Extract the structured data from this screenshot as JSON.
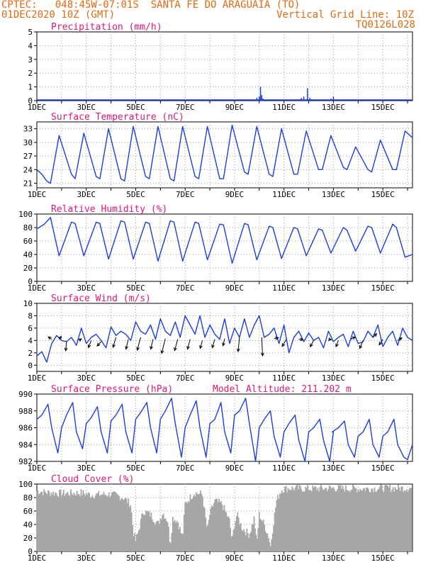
{
  "header": {
    "line1": "CPTEC:   048:45W-07:01S  SANTA FE DO ARAGUAIA (TO)",
    "line2": "01DEC2020 10Z (GMT)",
    "grid_note": "Vertical Grid Line: 10Z",
    "code": "TQ0126L028"
  },
  "colors": {
    "header": "#e06a12",
    "panel_title": "#e0157a",
    "series": "#1a3fe0",
    "cloud": "#a6a6a6",
    "grid": "#9a9a9a",
    "wind_arrow": "#000000"
  },
  "chart_data": [
    {
      "type": "bar",
      "title": "Precipitation (mm/h)",
      "x_tick_labels": [
        "1DEC",
        "3DEC",
        "5DEC",
        "7DEC",
        "9DEC",
        "11DEC",
        "13DEC",
        "15DEC"
      ],
      "x_days": [
        1,
        3,
        5,
        7,
        9,
        11,
        13,
        15
      ],
      "xlim": [
        1,
        16.2
      ],
      "ylim": [
        0,
        5
      ],
      "y_ticks": [
        0,
        1,
        2,
        3,
        4,
        5
      ],
      "grid": true,
      "bars": [
        [
          9.9,
          0.2
        ],
        [
          10.0,
          0.3
        ],
        [
          10.05,
          1.0
        ],
        [
          10.1,
          0.4
        ],
        [
          10.15,
          0.15
        ],
        [
          11.7,
          0.2
        ],
        [
          11.8,
          0.3
        ],
        [
          11.95,
          0.9
        ],
        [
          12.05,
          0.2
        ],
        [
          12.1,
          0.1
        ],
        [
          12.9,
          0.15
        ],
        [
          13.0,
          0.3
        ],
        [
          13.1,
          0.1
        ],
        [
          14.8,
          0.1
        ],
        [
          15.6,
          0.1
        ],
        [
          5.0,
          0.05
        ],
        [
          7.2,
          0.05
        ],
        [
          3.1,
          0.05
        ]
      ]
    },
    {
      "type": "line",
      "title": "Surface Temperature (nC)",
      "x_tick_labels": [
        "1DEC",
        "3DEC",
        "5DEC",
        "7DEC",
        "9DEC",
        "11DEC",
        "13DEC",
        "15DEC"
      ],
      "x_days": [
        1,
        3,
        5,
        7,
        9,
        11,
        13,
        15
      ],
      "xlim": [
        1,
        16.2
      ],
      "ylim": [
        20,
        34.5
      ],
      "y_ticks": [
        21,
        24,
        27,
        30,
        33
      ],
      "grid": true,
      "series": [
        {
          "x": [
            1.0,
            1.2,
            1.4,
            1.55,
            1.9,
            2.4,
            2.55,
            2.9,
            3.4,
            3.55,
            3.9,
            4.4,
            4.55,
            4.9,
            5.4,
            5.55,
            5.9,
            6.4,
            6.55,
            6.9,
            7.4,
            7.55,
            7.9,
            8.4,
            8.55,
            8.9,
            9.4,
            9.55,
            9.9,
            10.4,
            10.55,
            10.9,
            11.4,
            11.55,
            11.9,
            12.4,
            12.55,
            12.9,
            13.4,
            13.55,
            13.9,
            14.4,
            14.55,
            14.9,
            15.4,
            15.55,
            15.9,
            16.2
          ],
          "y": [
            24.0,
            23.0,
            21.5,
            21.0,
            31.5,
            23.0,
            22.0,
            32.0,
            22.5,
            22.0,
            33.0,
            22.0,
            21.5,
            33.5,
            22.5,
            22.0,
            33.5,
            22.0,
            21.5,
            33.5,
            22.5,
            22.0,
            33.5,
            22.0,
            22.0,
            33.8,
            23.5,
            23.0,
            33.5,
            23.0,
            22.5,
            33.0,
            23.0,
            23.0,
            32.5,
            24.0,
            24.0,
            31.5,
            24.5,
            24.0,
            29.0,
            24.0,
            23.5,
            30.5,
            24.0,
            24.0,
            32.5,
            31.0
          ]
        }
      ]
    },
    {
      "type": "line",
      "title": "Relative Humidity (%)",
      "x_tick_labels": [
        "1DEC",
        "3DEC",
        "5DEC",
        "7DEC",
        "9DEC",
        "11DEC",
        "13DEC",
        "15DEC"
      ],
      "x_days": [
        1,
        3,
        5,
        7,
        9,
        11,
        13,
        15
      ],
      "xlim": [
        1,
        16.2
      ],
      "ylim": [
        0,
        100
      ],
      "y_ticks": [
        0,
        20,
        40,
        60,
        80,
        100
      ],
      "grid": true,
      "series": [
        {
          "x": [
            1.0,
            1.3,
            1.55,
            1.9,
            2.4,
            2.55,
            2.9,
            3.4,
            3.55,
            3.9,
            4.4,
            4.55,
            4.9,
            5.4,
            5.55,
            5.9,
            6.4,
            6.55,
            6.9,
            7.4,
            7.55,
            7.9,
            8.4,
            8.55,
            8.9,
            9.4,
            9.55,
            9.9,
            10.4,
            10.55,
            10.9,
            11.4,
            11.55,
            11.9,
            12.4,
            12.55,
            12.9,
            13.4,
            13.55,
            13.9,
            14.4,
            14.55,
            14.9,
            15.4,
            15.55,
            15.9,
            16.2
          ],
          "y": [
            78,
            85,
            95,
            38,
            88,
            86,
            38,
            88,
            86,
            33,
            90,
            88,
            33,
            88,
            86,
            30,
            90,
            88,
            30,
            88,
            86,
            32,
            85,
            84,
            27,
            86,
            84,
            32,
            82,
            80,
            34,
            80,
            78,
            38,
            78,
            76,
            42,
            80,
            76,
            45,
            82,
            80,
            42,
            85,
            80,
            36,
            40
          ]
        }
      ]
    },
    {
      "type": "line",
      "title": "Surface Wind (m/s)",
      "x_tick_labels": [
        "1DEC",
        "3DEC",
        "5DEC",
        "7DEC",
        "9DEC",
        "11DEC",
        "13DEC",
        "15DEC"
      ],
      "x_days": [
        1,
        3,
        5,
        7,
        9,
        11,
        13,
        15
      ],
      "xlim": [
        1,
        16.2
      ],
      "ylim": [
        -1,
        10
      ],
      "y_ticks": [
        0,
        2,
        4,
        6,
        8,
        10
      ],
      "grid": true,
      "series": [
        {
          "x": [
            1.0,
            1.2,
            1.4,
            1.6,
            1.8,
            2.0,
            2.2,
            2.4,
            2.6,
            2.8,
            3.0,
            3.2,
            3.4,
            3.6,
            3.8,
            4.0,
            4.2,
            4.4,
            4.6,
            4.8,
            5.0,
            5.2,
            5.4,
            5.6,
            5.8,
            6.0,
            6.2,
            6.4,
            6.6,
            6.8,
            7.0,
            7.2,
            7.4,
            7.6,
            7.8,
            8.0,
            8.2,
            8.4,
            8.6,
            8.8,
            9.0,
            9.2,
            9.4,
            9.6,
            9.8,
            10.0,
            10.2,
            10.4,
            10.6,
            10.8,
            11.0,
            11.2,
            11.4,
            11.6,
            11.8,
            12.0,
            12.2,
            12.4,
            12.6,
            12.8,
            13.0,
            13.2,
            13.4,
            13.6,
            13.8,
            14.0,
            14.2,
            14.4,
            14.6,
            14.8,
            15.0,
            15.2,
            15.4,
            15.6,
            15.8,
            16.0,
            16.2
          ],
          "y": [
            1.5,
            2.2,
            0.5,
            3.5,
            4.8,
            4.0,
            3.8,
            4.5,
            3.2,
            6.0,
            3.5,
            4.5,
            5.0,
            4.0,
            2.8,
            6.2,
            4.8,
            5.5,
            5.0,
            4.0,
            7.0,
            5.5,
            5.0,
            6.5,
            4.2,
            7.5,
            5.5,
            4.8,
            7.0,
            4.5,
            8.0,
            6.5,
            5.0,
            8.0,
            4.5,
            6.5,
            5.0,
            4.2,
            7.5,
            3.5,
            6.0,
            4.5,
            7.5,
            4.5,
            6.5,
            8.0,
            4.5,
            5.0,
            6.0,
            3.5,
            6.5,
            2.0,
            4.5,
            5.5,
            3.8,
            5.2,
            4.0,
            4.5,
            2.8,
            5.5,
            3.8,
            4.5,
            5.0,
            3.0,
            5.5,
            3.5,
            3.8,
            5.5,
            4.5,
            6.5,
            3.0,
            4.5,
            5.5,
            3.2,
            6.0,
            4.5,
            4.0
          ]
        }
      ],
      "wind_vectors": [
        [
          1.6,
          4.2,
          -1.2,
          0.8
        ],
        [
          1.9,
          4.2,
          0.8,
          1.0
        ],
        [
          2.2,
          3.8,
          -0.3,
          -3.2
        ],
        [
          2.7,
          4.0,
          0.9,
          0.6
        ],
        [
          3.2,
          4.0,
          -1.0,
          -2.5
        ],
        [
          3.6,
          3.8,
          -1.4,
          -1.5
        ],
        [
          4.2,
          4.5,
          -1.0,
          -3.5
        ],
        [
          4.7,
          4.2,
          -0.8,
          -3.5
        ],
        [
          5.2,
          4.5,
          -1.2,
          -4.5
        ],
        [
          5.7,
          4.2,
          -0.8,
          -3.5
        ],
        [
          6.2,
          4.3,
          -1.3,
          -5.2
        ],
        [
          6.7,
          4.2,
          -1.1,
          -4.0
        ],
        [
          7.2,
          4.2,
          -0.9,
          -3.5
        ],
        [
          7.7,
          4.0,
          -0.8,
          -2.8
        ],
        [
          8.2,
          4.2,
          -0.9,
          -3.0
        ],
        [
          8.6,
          4.3,
          -0.6,
          -2.5
        ],
        [
          9.2,
          4.5,
          -0.5,
          -5.0
        ],
        [
          10.1,
          4.5,
          0.3,
          -6.5
        ],
        [
          10.6,
          4.3,
          1.5,
          0.3
        ],
        [
          11.1,
          4.2,
          -1.5,
          -2.5
        ],
        [
          11.6,
          4.2,
          1.5,
          -0.2
        ],
        [
          12.2,
          4.0,
          -1.2,
          -2.2
        ],
        [
          12.8,
          4.2,
          1.0,
          -0.2
        ],
        [
          13.2,
          4.0,
          -0.8,
          -2.2
        ],
        [
          13.7,
          4.2,
          1.6,
          0.8
        ],
        [
          14.2,
          4.0,
          -1.2,
          -2.8
        ],
        [
          14.6,
          4.5,
          1.3,
          1.3
        ],
        [
          15.0,
          4.2,
          -1.3,
          -2.0
        ],
        [
          15.6,
          4.0,
          1.5,
          0.9
        ]
      ]
    },
    {
      "type": "line",
      "title": "Surface Pressure (hPa)",
      "subtitle": "Model Altitude: 211.202  m",
      "x_tick_labels": [
        "1DEC",
        "3DEC",
        "5DEC",
        "7DEC",
        "9DEC",
        "11DEC",
        "13DEC",
        "15DEC"
      ],
      "x_days": [
        1,
        3,
        5,
        7,
        9,
        11,
        13,
        15
      ],
      "xlim": [
        1,
        16.2
      ],
      "ylim": [
        982,
        990
      ],
      "y_ticks": [
        982,
        984,
        986,
        988,
        990
      ],
      "grid": true,
      "series": [
        {
          "x": [
            1.0,
            1.2,
            1.45,
            1.6,
            1.85,
            2.0,
            2.2,
            2.45,
            2.6,
            2.85,
            3.0,
            3.2,
            3.45,
            3.6,
            3.85,
            4.0,
            4.2,
            4.45,
            4.6,
            4.85,
            5.0,
            5.2,
            5.45,
            5.6,
            5.85,
            6.0,
            6.2,
            6.45,
            6.6,
            6.85,
            7.0,
            7.2,
            7.45,
            7.6,
            7.85,
            8.0,
            8.2,
            8.45,
            8.6,
            8.85,
            9.0,
            9.2,
            9.45,
            9.6,
            9.85,
            10.0,
            10.2,
            10.45,
            10.6,
            10.85,
            11.0,
            11.2,
            11.45,
            11.6,
            11.85,
            12.0,
            12.2,
            12.45,
            12.6,
            12.85,
            13.0,
            12.95,
            13.2,
            13.45,
            13.6,
            13.85,
            14.0,
            14.2,
            14.45,
            14.6,
            14.85,
            15.0,
            15.2,
            15.45,
            15.6,
            15.85,
            16.0,
            16.2
          ],
          "y": [
            987.0,
            987.5,
            988.8,
            986.0,
            983.0,
            986.0,
            987.5,
            989.0,
            985.5,
            983.5,
            986.5,
            987.2,
            988.5,
            985.5,
            983.0,
            986.8,
            987.5,
            988.8,
            985.5,
            983.0,
            987.0,
            987.8,
            989.0,
            986.0,
            983.0,
            987.0,
            988.0,
            989.5,
            986.5,
            982.5,
            986.0,
            987.5,
            989.2,
            986.0,
            982.5,
            986.5,
            987.0,
            989.0,
            985.5,
            983.0,
            987.5,
            988.0,
            989.5,
            986.5,
            982.0,
            986.0,
            987.0,
            988.0,
            985.0,
            982.5,
            985.5,
            986.5,
            987.5,
            984.5,
            982.0,
            985.5,
            986.0,
            987.0,
            984.5,
            982.0,
            985.5,
            985.5,
            986.0,
            986.8,
            984.0,
            982.5,
            985.0,
            985.5,
            987.0,
            984.0,
            982.5,
            985.0,
            985.5,
            987.0,
            984.0,
            982.5,
            982.2,
            984.0
          ]
        }
      ]
    },
    {
      "type": "bar",
      "title": "Cloud Cover (%)",
      "x_tick_labels": [
        "1DEC",
        "3DEC",
        "5DEC",
        "7DEC",
        "9DEC",
        "11DEC",
        "13DEC",
        "15DEC"
      ],
      "x_days": [
        1,
        3,
        5,
        7,
        9,
        11,
        13,
        15
      ],
      "xlim": [
        1,
        16.2
      ],
      "ylim": [
        0,
        100
      ],
      "y_ticks": [
        0,
        20,
        40,
        60,
        80,
        100
      ],
      "grid": true,
      "profile_x": [
        1.0,
        1.3,
        2.0,
        2.8,
        3.2,
        4.0,
        4.5,
        4.8,
        4.9,
        5.0,
        5.15,
        5.3,
        5.6,
        5.9,
        6.1,
        6.3,
        6.4,
        6.5,
        6.7,
        6.9,
        7.0,
        7.2,
        7.4,
        7.5,
        7.7,
        7.9,
        8.0,
        8.2,
        8.5,
        8.8,
        8.9,
        9.0,
        9.1,
        9.3,
        9.6,
        9.8,
        9.9,
        10.0,
        10.2,
        10.4,
        10.45,
        10.55,
        10.7,
        10.9,
        11.2,
        12.0,
        13.0,
        14.0,
        15.0,
        16.2
      ],
      "profile_y": [
        90,
        88,
        86,
        87,
        84,
        85,
        80,
        70,
        30,
        15,
        35,
        60,
        55,
        40,
        58,
        45,
        10,
        50,
        45,
        20,
        70,
        80,
        88,
        86,
        85,
        30,
        55,
        75,
        70,
        45,
        15,
        40,
        55,
        35,
        25,
        50,
        10,
        55,
        40,
        20,
        5,
        35,
        75,
        92,
        94,
        93,
        94,
        93,
        94,
        94
      ]
    }
  ]
}
